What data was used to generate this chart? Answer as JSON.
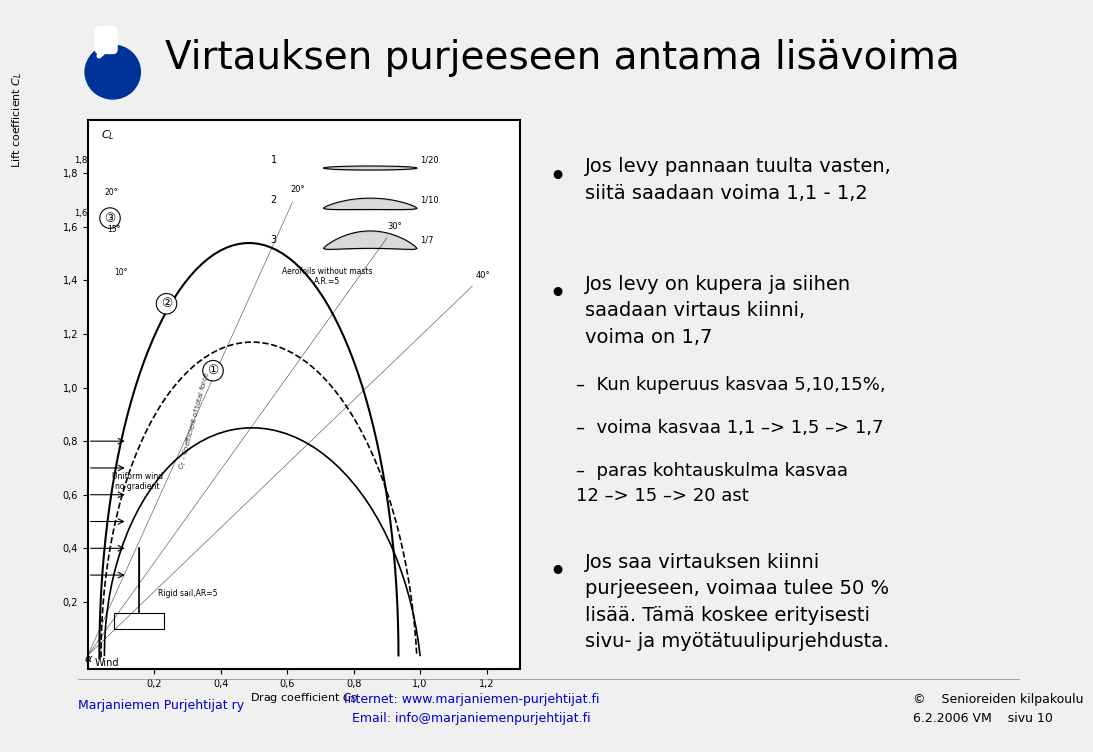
{
  "title": "Virtauksen purjeeseen antama lisävoima",
  "bg_color": "#f0f0f0",
  "title_color": "#000000",
  "title_fontsize": 28,
  "logo_color": "#003399",
  "bullet1_header": "Jos levy pannaan tuulta vasten,\nsiiتä saadaan voima 1,1 - 1,2",
  "bullet1": "Jos levy pannaan tuulta vasten,\nsiitä saadaan voima 1,1 - 1,2",
  "bullet2": "Jos levy on kupera ja siihen\nsaadaan virtaus kiinni,\nvoima on 1,7",
  "sub1": "Kun kuperuus kasvaa 5,10,15%,",
  "sub2": "voima kasvaa 1,1 –> 1,5 –> 1,7",
  "sub3": "paras kohtauskulma kasvaa\n12 –> 15 –> 20 ast",
  "bullet3": "Jos saa virtauksen kiinni\npurjeeseen, voimaa tulee 50 %\nlisää. Tämä koskee erityisesti\nsivu- ja myötätuulipurjehdusta.",
  "footer_left": "Marjaniemen Purjehtijat ry",
  "footer_center1": "Internet: www.marjaniemen-purjehtijat.fi",
  "footer_center2": "Email: info@marjaniemenpurjehtijat.fi",
  "footer_right1": "©    Senioreiden kilpakoulu",
  "footer_right2": "6.2.2006 VM    sivu 10",
  "footer_color": "#0000cc",
  "text_color": "#000000",
  "body_fontsize": 14,
  "sub_fontsize": 13,
  "footer_fontsize": 9
}
